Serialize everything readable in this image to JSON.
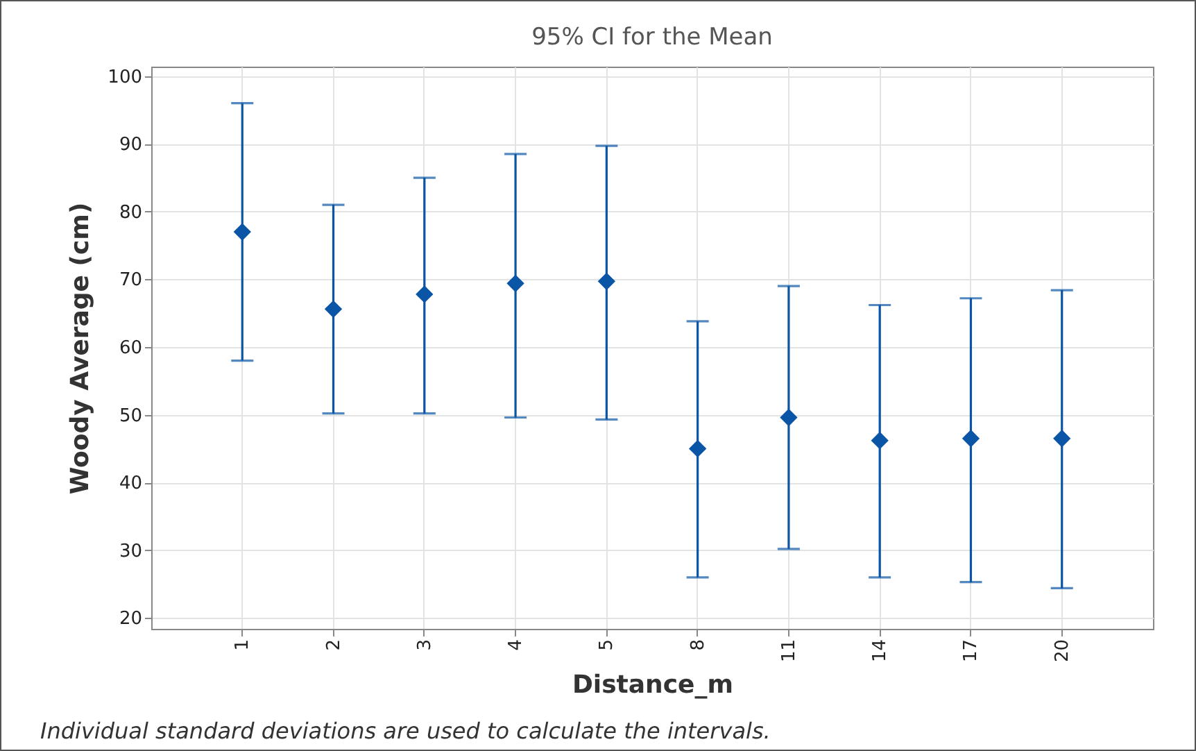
{
  "chart_data": {
    "type": "scatter",
    "title": "95% CI for the Mean",
    "xlabel": "Distance_m",
    "ylabel": "Woody Average  (cm)",
    "categories": [
      "1",
      "2",
      "3",
      "4",
      "5",
      "8",
      "11",
      "14",
      "17",
      "20"
    ],
    "values": [
      77,
      65.6,
      67.8,
      69.4,
      69.7,
      45,
      49.6,
      46.2,
      46.5,
      46.5
    ],
    "errors": [
      [
        58,
        96
      ],
      [
        50.2,
        81
      ],
      [
        50.2,
        85
      ],
      [
        49.6,
        88.5
      ],
      [
        49.3,
        89.7
      ],
      [
        26,
        63.8
      ],
      [
        30.2,
        69
      ],
      [
        26,
        66.2
      ],
      [
        25.3,
        67.2
      ],
      [
        24.4,
        68.4
      ]
    ],
    "color": "#0a55a5",
    "marker": "diamond",
    "grid": true,
    "ylim": [
      18.4,
      101.4
    ],
    "yticks": [
      20,
      30,
      40,
      50,
      60,
      70,
      80,
      90,
      100
    ],
    "annotations": [
      "Individual standard deviations are used to calculate the intervals."
    ]
  }
}
